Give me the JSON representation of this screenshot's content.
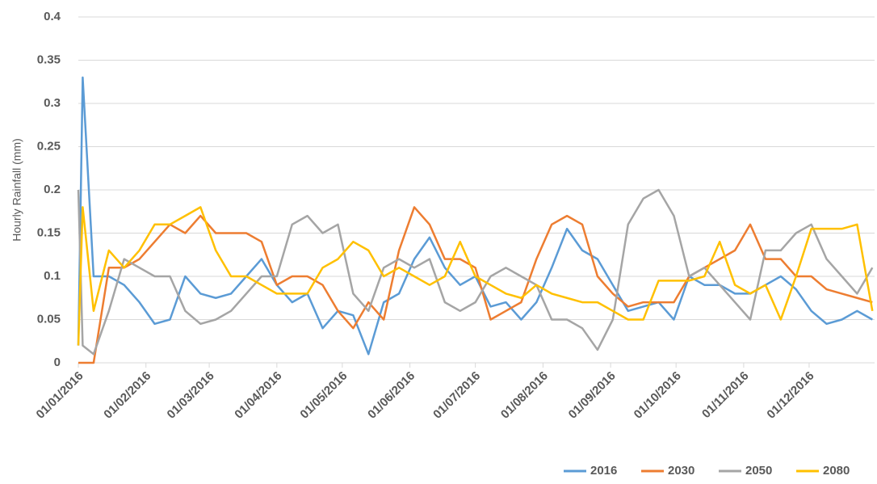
{
  "chart_data": {
    "type": "line",
    "y_label": "Hourly Rainfall (mm)",
    "x": [
      "2016-01-01",
      "2016-01-03",
      "2016-01-08",
      "2016-01-15",
      "2016-01-22",
      "2016-01-29",
      "2016-02-05",
      "2016-02-12",
      "2016-02-19",
      "2016-02-26",
      "2016-03-04",
      "2016-03-11",
      "2016-03-18",
      "2016-03-25",
      "2016-04-01",
      "2016-04-08",
      "2016-04-15",
      "2016-04-22",
      "2016-04-29",
      "2016-05-06",
      "2016-05-13",
      "2016-05-20",
      "2016-05-27",
      "2016-06-03",
      "2016-06-10",
      "2016-06-17",
      "2016-06-24",
      "2016-07-01",
      "2016-07-08",
      "2016-07-15",
      "2016-07-22",
      "2016-07-29",
      "2016-08-05",
      "2016-08-12",
      "2016-08-19",
      "2016-08-26",
      "2016-09-02",
      "2016-09-09",
      "2016-09-16",
      "2016-09-23",
      "2016-09-30",
      "2016-10-07",
      "2016-10-14",
      "2016-10-21",
      "2016-10-28",
      "2016-11-04",
      "2016-11-11",
      "2016-11-18",
      "2016-11-25",
      "2016-12-02",
      "2016-12-09",
      "2016-12-16",
      "2016-12-23",
      "2016-12-30"
    ],
    "series": [
      {
        "name": "2016",
        "color": "#5b9bd5",
        "values": [
          0.02,
          0.33,
          0.1,
          0.1,
          0.09,
          0.07,
          0.045,
          0.05,
          0.1,
          0.08,
          0.075,
          0.08,
          0.1,
          0.12,
          0.09,
          0.07,
          0.08,
          0.04,
          0.06,
          0.055,
          0.01,
          0.07,
          0.08,
          0.12,
          0.145,
          0.11,
          0.09,
          0.1,
          0.065,
          0.07,
          0.05,
          0.07,
          0.11,
          0.155,
          0.13,
          0.12,
          0.09,
          0.06,
          0.065,
          0.07,
          0.05,
          0.1,
          0.09,
          0.09,
          0.08,
          0.08,
          0.09,
          0.1,
          0.085,
          0.06,
          0.045,
          0.05,
          0.06,
          0.05
        ]
      },
      {
        "name": "2030",
        "color": "#ed7d31",
        "values": [
          0,
          0,
          0,
          0.11,
          0.11,
          0.12,
          0.14,
          0.16,
          0.15,
          0.17,
          0.15,
          0.15,
          0.15,
          0.14,
          0.09,
          0.1,
          0.1,
          0.09,
          0.06,
          0.04,
          0.07,
          0.05,
          0.13,
          0.18,
          0.16,
          0.12,
          0.12,
          0.11,
          0.05,
          0.06,
          0.07,
          0.12,
          0.16,
          0.17,
          0.16,
          0.1,
          0.08,
          0.065,
          0.07,
          0.07,
          0.07,
          0.1,
          0.11,
          0.12,
          0.13,
          0.16,
          0.12,
          0.12,
          0.1,
          0.1,
          0.085,
          0.08,
          0.075,
          0.07
        ]
      },
      {
        "name": "2050",
        "color": "#a5a5a5",
        "values": [
          0.2,
          0.02,
          0.01,
          0.06,
          0.12,
          0.11,
          0.1,
          0.1,
          0.06,
          0.045,
          0.05,
          0.06,
          0.08,
          0.1,
          0.1,
          0.16,
          0.17,
          0.15,
          0.16,
          0.08,
          0.06,
          0.11,
          0.12,
          0.11,
          0.12,
          0.07,
          0.06,
          0.07,
          0.1,
          0.11,
          0.1,
          0.09,
          0.05,
          0.05,
          0.04,
          0.015,
          0.05,
          0.16,
          0.19,
          0.2,
          0.17,
          0.1,
          0.11,
          0.09,
          0.07,
          0.05,
          0.13,
          0.13,
          0.15,
          0.16,
          0.12,
          0.1,
          0.08,
          0.11
        ]
      },
      {
        "name": "2080",
        "color": "#ffc000",
        "values": [
          0.02,
          0.18,
          0.06,
          0.13,
          0.11,
          0.13,
          0.16,
          0.16,
          0.17,
          0.18,
          0.13,
          0.1,
          0.1,
          0.09,
          0.08,
          0.08,
          0.08,
          0.11,
          0.12,
          0.14,
          0.13,
          0.1,
          0.11,
          0.1,
          0.09,
          0.1,
          0.14,
          0.1,
          0.09,
          0.08,
          0.075,
          0.09,
          0.08,
          0.075,
          0.07,
          0.07,
          0.06,
          0.05,
          0.05,
          0.095,
          0.095,
          0.095,
          0.1,
          0.14,
          0.09,
          0.08,
          0.09,
          0.05,
          0.1,
          0.155,
          0.155,
          0.155,
          0.16,
          0.06
        ]
      }
    ],
    "xlim": [
      "2016-01-01",
      "2016-12-31"
    ],
    "xticks": [
      {
        "value": "2016-01-01",
        "label": "01/01/2016"
      },
      {
        "value": "2016-02-01",
        "label": "01/02/2016"
      },
      {
        "value": "2016-03-01",
        "label": "01/03/2016"
      },
      {
        "value": "2016-04-01",
        "label": "01/04/2016"
      },
      {
        "value": "2016-05-01",
        "label": "01/05/2016"
      },
      {
        "value": "2016-06-01",
        "label": "01/06/2016"
      },
      {
        "value": "2016-07-01",
        "label": "01/07/2016"
      },
      {
        "value": "2016-08-01",
        "label": "01/08/2016"
      },
      {
        "value": "2016-09-01",
        "label": "01/09/2016"
      },
      {
        "value": "2016-10-01",
        "label": "01/10/2016"
      },
      {
        "value": "2016-11-01",
        "label": "01/11/2016"
      },
      {
        "value": "2016-12-01",
        "label": "01/12/2016"
      }
    ],
    "ylim": [
      0,
      0.4
    ],
    "yticks": [
      0,
      0.05,
      0.1,
      0.15,
      0.2,
      0.25,
      0.3,
      0.35,
      0.4
    ],
    "grid": true,
    "legend": "bottom-right"
  }
}
